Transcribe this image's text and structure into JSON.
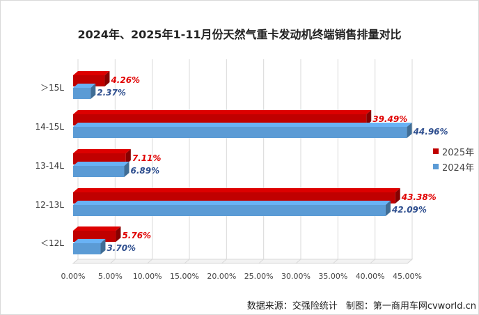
{
  "title": "2024年、2025年1-11月份天然气重卡发动机终端销售排量对比",
  "source": {
    "data_source": "数据来源：交强险统计",
    "credit": "制图：第一商用车网cvworld.cn"
  },
  "colors": {
    "series_2025": "#c00000",
    "series_2024": "#5b9bd5",
    "label_2025": "#e00000",
    "label_2024": "#2f4f8f",
    "grid": "#d9d9d9"
  },
  "chart_data": {
    "type": "bar",
    "orientation": "horizontal",
    "style": "3d-clustered",
    "title": "2024年、2025年1-11月份天然气重卡发动机终端销售排量对比",
    "categories": [
      "＞15L",
      "14-15L",
      "13-14L",
      "12-13L",
      "＜12L"
    ],
    "series": [
      {
        "name": "2025年",
        "values": [
          4.26,
          39.49,
          7.11,
          43.38,
          5.76
        ],
        "labels": [
          "4.26%",
          "39.49%",
          "7.11%",
          "43.38%",
          "5.76%"
        ]
      },
      {
        "name": "2024年",
        "values": [
          2.37,
          44.96,
          6.89,
          42.09,
          3.7
        ],
        "labels": [
          "2.37%",
          "44.96%",
          "6.89%",
          "42.09%",
          "3.70%"
        ]
      }
    ],
    "xlim": [
      0,
      45
    ],
    "x_ticks": [
      "0.00%",
      "5.00%",
      "10.00%",
      "15.00%",
      "20.00%",
      "25.00%",
      "30.00%",
      "35.00%",
      "40.00%",
      "45.00%"
    ],
    "grid": true,
    "legend_position": "right"
  }
}
